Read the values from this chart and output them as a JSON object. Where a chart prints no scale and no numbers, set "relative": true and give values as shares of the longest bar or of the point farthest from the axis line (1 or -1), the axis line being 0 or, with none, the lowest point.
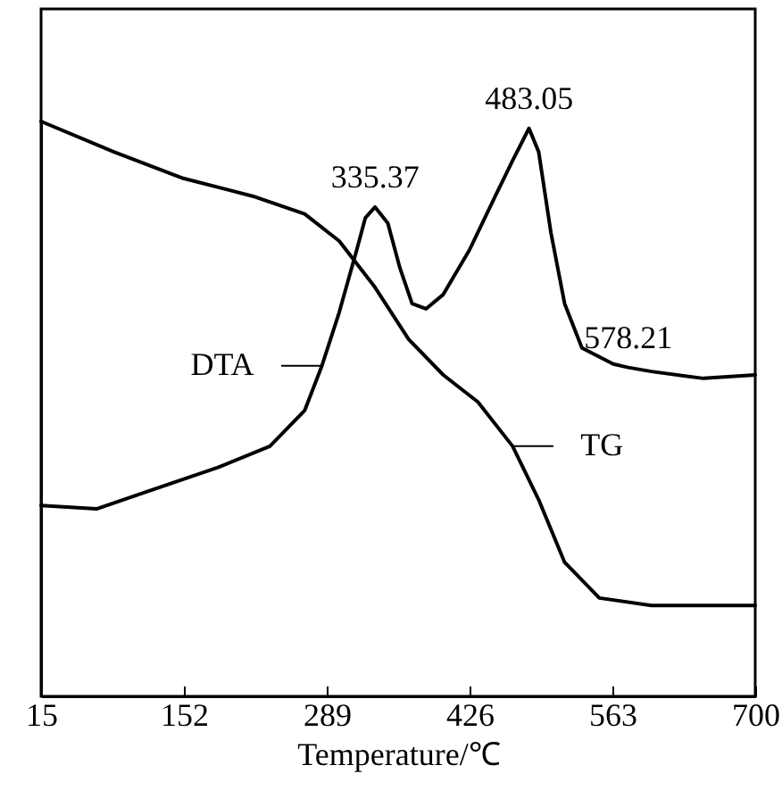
{
  "chart_data": {
    "type": "line",
    "xlabel": "Temperature/℃",
    "relative": true,
    "xlim": [
      15,
      700
    ],
    "xticks": [
      15,
      152,
      289,
      426,
      563,
      700
    ],
    "marker": "none",
    "line_style": "solid",
    "series": [
      {
        "name": "DTA",
        "color": "#000000",
        "x": [
          15,
          68.2,
          118.1,
          184.6,
          234.5,
          267.8,
          284.4,
          301,
          317.7,
          326,
          335.4,
          347.6,
          359.2,
          370.9,
          384.2,
          400.8,
          425.8,
          450.7,
          467.3,
          483,
          492.3,
          504,
          517.2,
          533.8,
          563.8,
          578.2,
          600.4,
          650.3,
          700
        ],
        "values": [
          0.332,
          0.326,
          0.357,
          0.398,
          0.435,
          0.497,
          0.575,
          0.668,
          0.776,
          0.832,
          0.851,
          0.823,
          0.745,
          0.683,
          0.674,
          0.699,
          0.776,
          0.87,
          0.932,
          0.988,
          0.947,
          0.807,
          0.683,
          0.606,
          0.578,
          0.572,
          0.565,
          0.553,
          0.559
        ]
      },
      {
        "name": "TG",
        "color": "#000000",
        "x": [
          15,
          84.8,
          151.4,
          217.9,
          267.8,
          301,
          334.3,
          367.6,
          400.8,
          434,
          467.3,
          492.3,
          517.2,
          550.5,
          600.4,
          700
        ],
        "values": [
          1,
          0.947,
          0.901,
          0.87,
          0.839,
          0.792,
          0.714,
          0.621,
          0.559,
          0.512,
          0.435,
          0.342,
          0.233,
          0.171,
          0.158,
          0.158
        ]
      }
    ],
    "annotations": [
      {
        "text": "335.37",
        "x": 335.37,
        "y": 0.851
      },
      {
        "text": "483.05",
        "x": 483.05,
        "y": 0.988
      },
      {
        "text": "578.21",
        "x": 578.21,
        "y": 0.572
      }
    ]
  }
}
